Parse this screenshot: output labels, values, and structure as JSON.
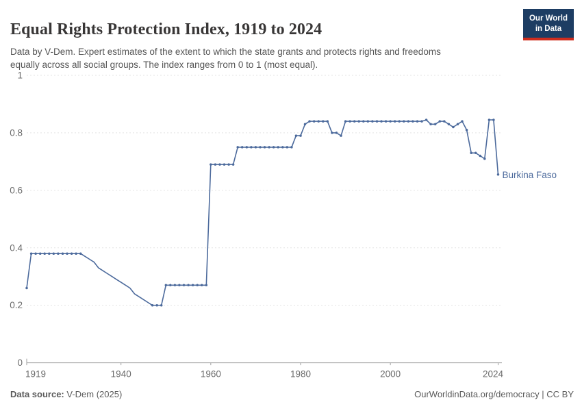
{
  "header": {
    "title": "Equal Rights Protection Index, 1919 to 2024",
    "subtitle_line1": "Data by V-Dem. Expert estimates of the extent to which the state grants and protects rights and freedoms",
    "subtitle_line2": "equally across all social groups. The index ranges from 0 to 1 (most equal)."
  },
  "logo": {
    "line1": "Our World",
    "line2": "in Data",
    "bg_color": "#1d3d63",
    "accent_color": "#cf2d1e"
  },
  "footer": {
    "source_label": "Data source:",
    "source_value": " V-Dem (2025)",
    "right_text": "OurWorldinData.org/democracy | CC BY"
  },
  "colors": {
    "line": "#4c6a9c",
    "entity_label": "#4c6a9c",
    "grid": "#e3e3e3",
    "axis": "#9e9e9e",
    "tick_text": "#6b6b6b"
  },
  "chart_data": {
    "type": "line",
    "title": "Equal Rights Protection Index, 1919 to 2024",
    "entity": "Burkina Faso",
    "xlabel": "",
    "ylabel": "",
    "xlim": [
      1919,
      2024
    ],
    "ylim": [
      0,
      1
    ],
    "grid": true,
    "legend_position": "end-of-line-label",
    "yticks": [
      0,
      0.2,
      0.4,
      0.6,
      0.8,
      1
    ],
    "ytick_labels": [
      "0",
      "0.2",
      "0.4",
      "0.6",
      "0.8",
      "1"
    ],
    "xticks": [
      1919,
      1940,
      1960,
      1980,
      2000,
      2024
    ],
    "points": [
      [
        1919,
        0.26
      ],
      [
        1920,
        0.38
      ],
      [
        1921,
        0.38
      ],
      [
        1922,
        0.38
      ],
      [
        1923,
        0.38
      ],
      [
        1924,
        0.38
      ],
      [
        1925,
        0.38
      ],
      [
        1926,
        0.38
      ],
      [
        1927,
        0.38
      ],
      [
        1928,
        0.38
      ],
      [
        1929,
        0.38
      ],
      [
        1930,
        0.38
      ],
      [
        1931,
        0.38
      ],
      [
        1932,
        0.37
      ],
      [
        1933,
        0.36
      ],
      [
        1934,
        0.35
      ],
      [
        1935,
        0.33
      ],
      [
        1936,
        0.32
      ],
      [
        1937,
        0.31
      ],
      [
        1938,
        0.3
      ],
      [
        1939,
        0.29
      ],
      [
        1940,
        0.28
      ],
      [
        1941,
        0.27
      ],
      [
        1942,
        0.26
      ],
      [
        1943,
        0.24
      ],
      [
        1944,
        0.23
      ],
      [
        1945,
        0.22
      ],
      [
        1946,
        0.21
      ],
      [
        1947,
        0.2
      ],
      [
        1948,
        0.2
      ],
      [
        1949,
        0.2
      ],
      [
        1950,
        0.27
      ],
      [
        1951,
        0.27
      ],
      [
        1952,
        0.27
      ],
      [
        1953,
        0.27
      ],
      [
        1954,
        0.27
      ],
      [
        1955,
        0.27
      ],
      [
        1956,
        0.27
      ],
      [
        1957,
        0.27
      ],
      [
        1958,
        0.27
      ],
      [
        1959,
        0.27
      ],
      [
        1960,
        0.69
      ],
      [
        1961,
        0.69
      ],
      [
        1962,
        0.69
      ],
      [
        1963,
        0.69
      ],
      [
        1964,
        0.69
      ],
      [
        1965,
        0.69
      ],
      [
        1966,
        0.75
      ],
      [
        1967,
        0.75
      ],
      [
        1968,
        0.75
      ],
      [
        1969,
        0.75
      ],
      [
        1970,
        0.75
      ],
      [
        1971,
        0.75
      ],
      [
        1972,
        0.75
      ],
      [
        1973,
        0.75
      ],
      [
        1974,
        0.75
      ],
      [
        1975,
        0.75
      ],
      [
        1976,
        0.75
      ],
      [
        1977,
        0.75
      ],
      [
        1978,
        0.75
      ],
      [
        1979,
        0.79
      ],
      [
        1980,
        0.79
      ],
      [
        1981,
        0.83
      ],
      [
        1982,
        0.84
      ],
      [
        1983,
        0.84
      ],
      [
        1984,
        0.84
      ],
      [
        1985,
        0.84
      ],
      [
        1986,
        0.84
      ],
      [
        1987,
        0.8
      ],
      [
        1988,
        0.8
      ],
      [
        1989,
        0.79
      ],
      [
        1990,
        0.84
      ],
      [
        1991,
        0.84
      ],
      [
        1992,
        0.84
      ],
      [
        1993,
        0.84
      ],
      [
        1994,
        0.84
      ],
      [
        1995,
        0.84
      ],
      [
        1996,
        0.84
      ],
      [
        1997,
        0.84
      ],
      [
        1998,
        0.84
      ],
      [
        1999,
        0.84
      ],
      [
        2000,
        0.84
      ],
      [
        2001,
        0.84
      ],
      [
        2002,
        0.84
      ],
      [
        2003,
        0.84
      ],
      [
        2004,
        0.84
      ],
      [
        2005,
        0.84
      ],
      [
        2006,
        0.84
      ],
      [
        2007,
        0.84
      ],
      [
        2008,
        0.845
      ],
      [
        2009,
        0.83
      ],
      [
        2010,
        0.83
      ],
      [
        2011,
        0.84
      ],
      [
        2012,
        0.84
      ],
      [
        2013,
        0.83
      ],
      [
        2014,
        0.82
      ],
      [
        2015,
        0.83
      ],
      [
        2016,
        0.84
      ],
      [
        2017,
        0.81
      ],
      [
        2018,
        0.73
      ],
      [
        2019,
        0.73
      ],
      [
        2020,
        0.72
      ],
      [
        2021,
        0.71
      ],
      [
        2022,
        0.845
      ],
      [
        2023,
        0.845
      ],
      [
        2024,
        0.655
      ]
    ]
  }
}
